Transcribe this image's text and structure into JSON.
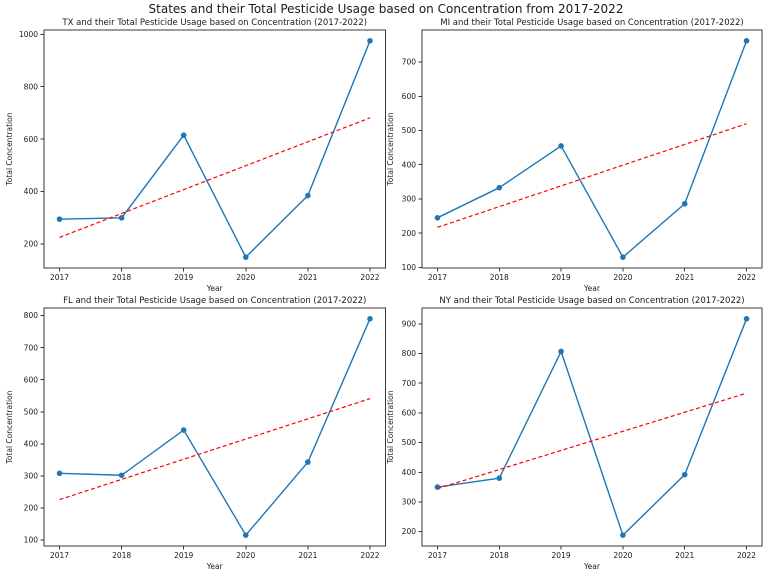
{
  "figure": {
    "title": "States and their Total Pesticide Usage based on Concentration from 2017-2022",
    "background": "#ffffff"
  },
  "colors": {
    "data_line": "#1f77b4",
    "trend_line": "#ff0000",
    "spine": "#3a3a3a",
    "text": "#1a1a1a"
  },
  "chart_data": [
    {
      "type": "line",
      "state": "TX",
      "title": "TX and their Total Pesticide Usage based on Concentration (2017-2022)",
      "xlabel": "Year",
      "ylabel": "Total Concentration",
      "x": [
        2017,
        2018,
        2019,
        2020,
        2021,
        2022
      ],
      "series": [
        {
          "name": "total-concentration",
          "values": [
            295,
            300,
            615,
            150,
            385,
            975
          ],
          "style": "solid-markers"
        },
        {
          "name": "linear-trend",
          "values": [
            225.5,
            316.6,
            407.8,
            498.9,
            590.0,
            681.2
          ],
          "style": "dashed"
        }
      ],
      "yticks": [
        200,
        400,
        600,
        800,
        1000
      ],
      "ylim": [
        108.75,
        1016.25
      ],
      "xlim": [
        2016.75,
        2022.25
      ],
      "grid": false,
      "legend": "none"
    },
    {
      "type": "line",
      "state": "MI",
      "title": "MI and their Total Pesticide Usage based on Concentration (2017-2022)",
      "xlabel": "Year",
      "ylabel": "Total Concentration",
      "x": [
        2017,
        2018,
        2019,
        2020,
        2021,
        2022
      ],
      "series": [
        {
          "name": "total-concentration",
          "values": [
            245,
            333,
            455,
            130,
            286,
            762
          ],
          "style": "solid-markers"
        },
        {
          "name": "linear-trend",
          "values": [
            217.1,
            277.7,
            338.2,
            398.8,
            459.3,
            519.9
          ],
          "style": "dashed"
        }
      ],
      "yticks": [
        100,
        200,
        300,
        400,
        500,
        600,
        700
      ],
      "ylim": [
        98.4,
        793.6
      ],
      "xlim": [
        2016.75,
        2022.25
      ],
      "grid": false,
      "legend": "none"
    },
    {
      "type": "line",
      "state": "FL",
      "title": "FL and their Total Pesticide Usage based on Concentration (2017-2022)",
      "xlabel": "Year",
      "ylabel": "Total Concentration",
      "x": [
        2017,
        2018,
        2019,
        2020,
        2021,
        2022
      ],
      "series": [
        {
          "name": "total-concentration",
          "values": [
            308,
            302,
            443,
            115,
            343,
            790
          ],
          "style": "solid-markers"
        },
        {
          "name": "linear-trend",
          "values": [
            226.0,
            289.0,
            352.0,
            415.0,
            478.0,
            541.0
          ],
          "style": "dashed"
        }
      ],
      "yticks": [
        100,
        200,
        300,
        400,
        500,
        600,
        700,
        800
      ],
      "ylim": [
        81.25,
        823.75
      ],
      "xlim": [
        2016.75,
        2022.25
      ],
      "grid": false,
      "legend": "none"
    },
    {
      "type": "line",
      "state": "NY",
      "title": "NY and their Total Pesticide Usage based on Concentration (2017-2022)",
      "xlabel": "Year",
      "ylabel": "Total Concentration",
      "x": [
        2017,
        2018,
        2019,
        2020,
        2021,
        2022
      ],
      "series": [
        {
          "name": "total-concentration",
          "values": [
            350,
            380,
            807,
            188,
            392,
            917
          ],
          "style": "solid-markers"
        },
        {
          "name": "linear-trend",
          "values": [
            344.8,
            409.2,
            473.5,
            537.9,
            602.2,
            666.6
          ],
          "style": "dashed"
        }
      ],
      "yticks": [
        200,
        300,
        400,
        500,
        600,
        700,
        800,
        900
      ],
      "ylim": [
        151.55,
        953.45
      ],
      "xlim": [
        2016.75,
        2022.25
      ],
      "grid": false,
      "legend": "none"
    }
  ]
}
